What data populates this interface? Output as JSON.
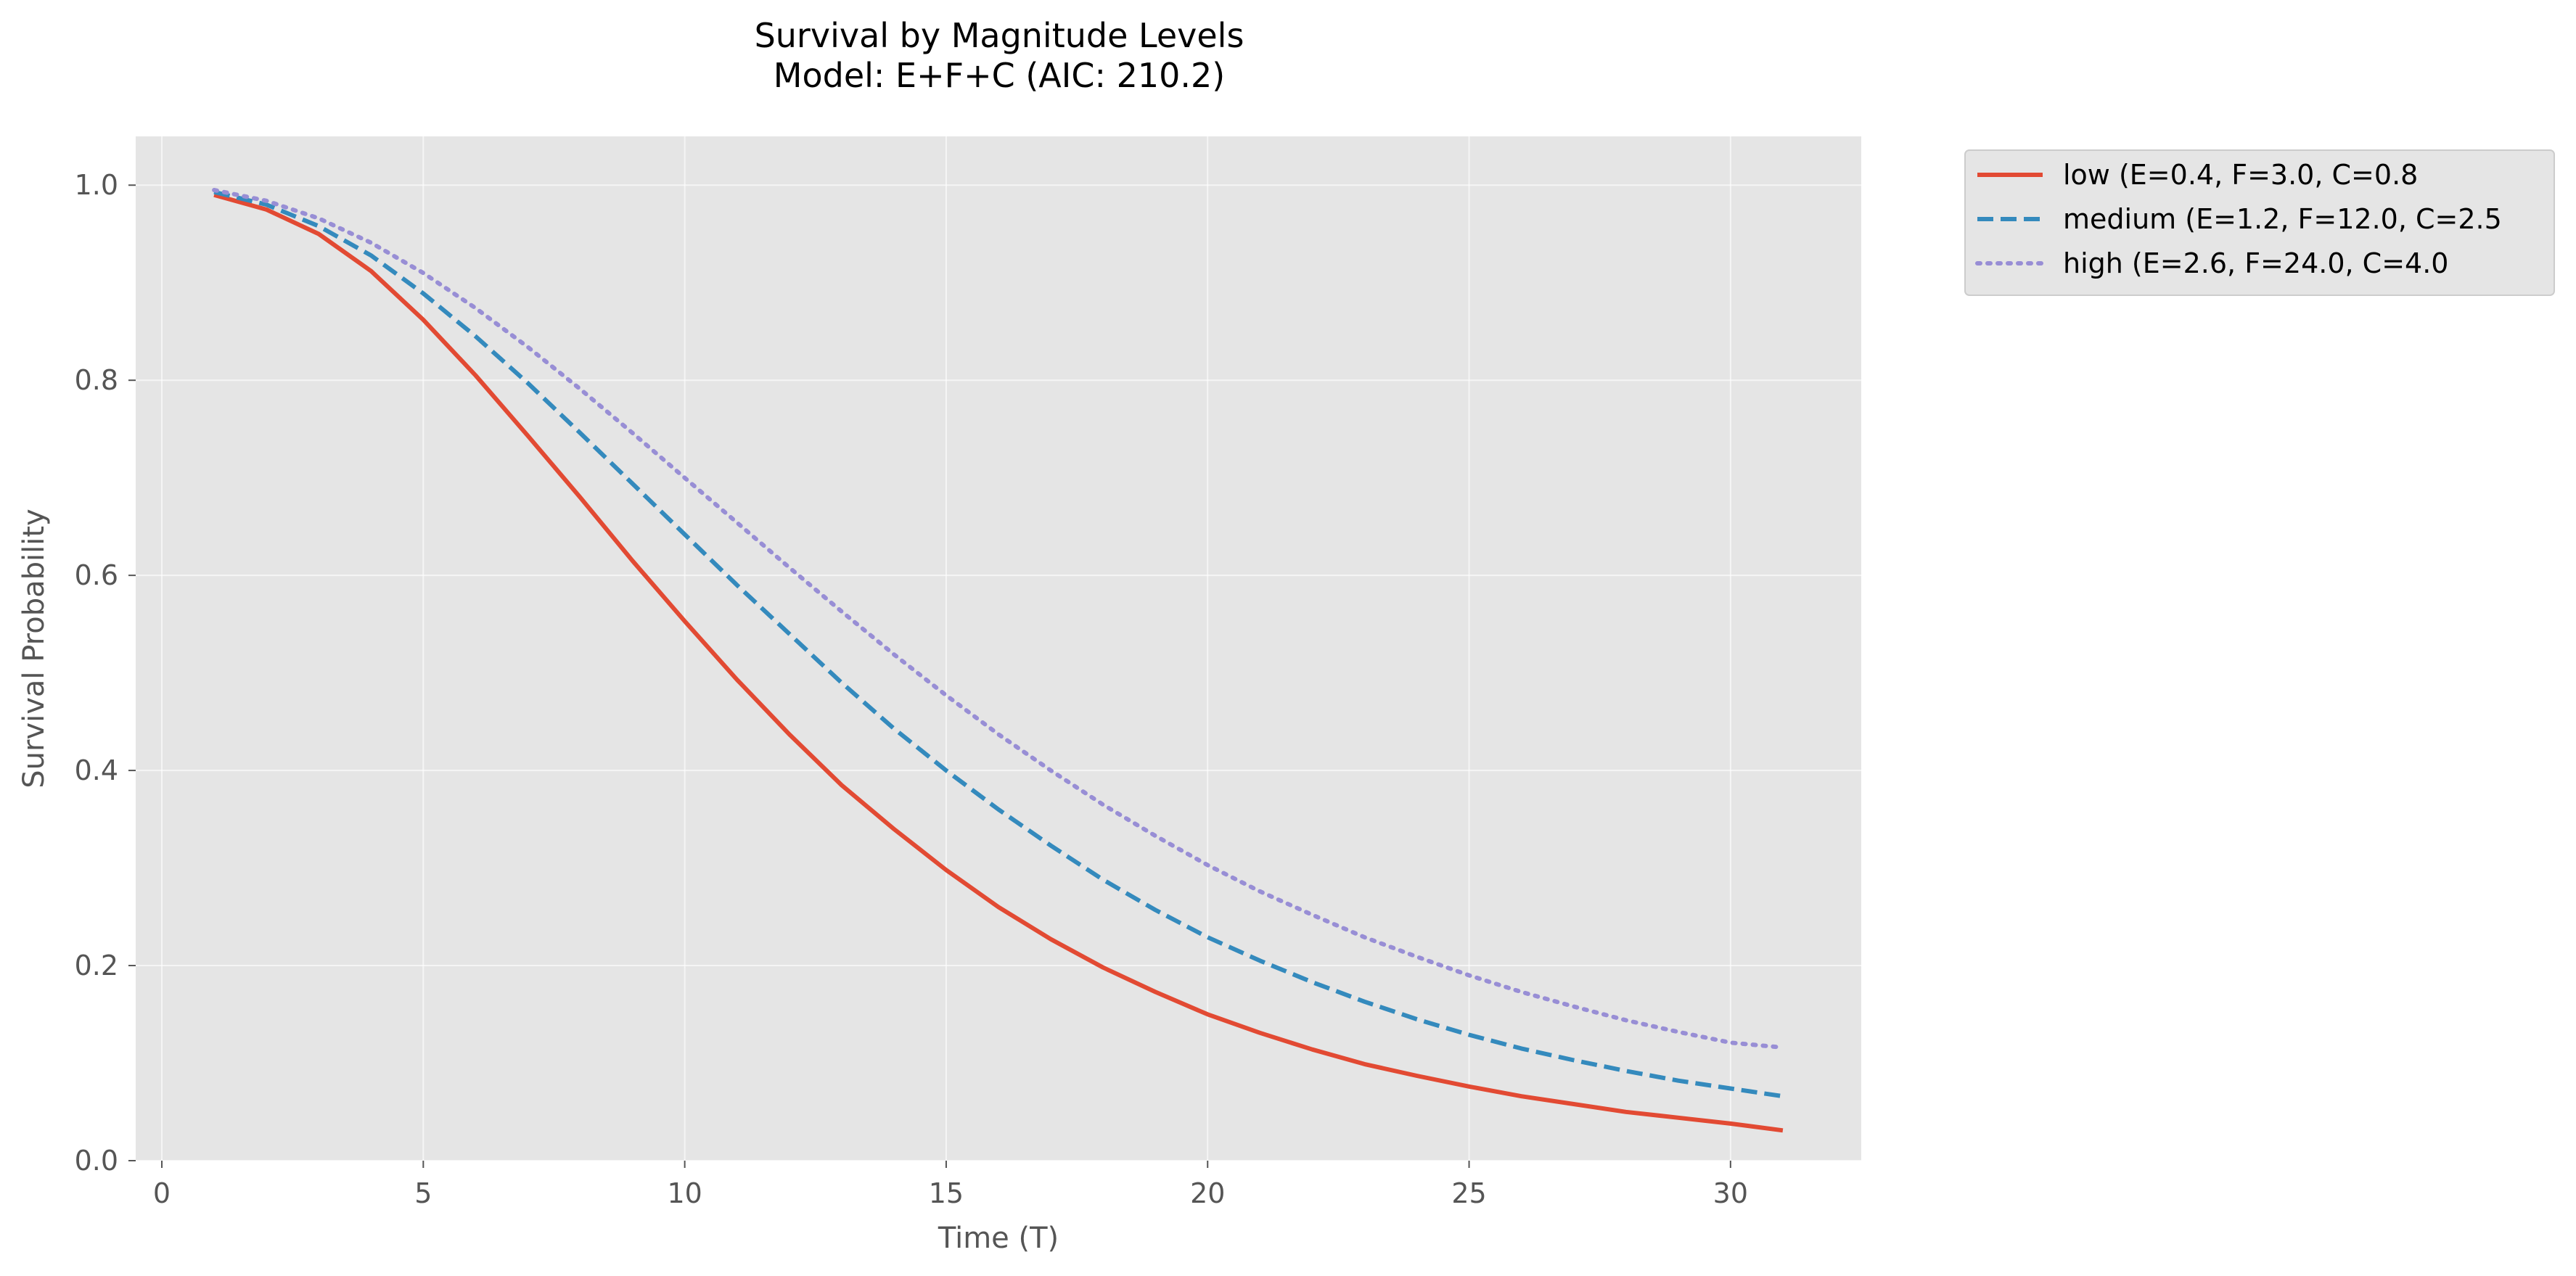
{
  "chart_data": {
    "type": "line",
    "title": "Survival by Magnitude Levels",
    "subtitle": "Model: E+F+C (AIC: 210.2)",
    "xlabel": "Time (T)",
    "ylabel": "Survival Probability",
    "xlim": [
      -0.5,
      32.5
    ],
    "ylim": [
      0.0,
      1.05
    ],
    "xticks": [
      0,
      5,
      10,
      15,
      20,
      25,
      30
    ],
    "yticks": [
      0.0,
      0.2,
      0.4,
      0.6,
      0.8,
      1.0
    ],
    "xtick_labels": [
      "0",
      "5",
      "10",
      "15",
      "20",
      "25",
      "30"
    ],
    "ytick_labels": [
      "0.0",
      "0.2",
      "0.4",
      "0.6",
      "0.8",
      "1.0"
    ],
    "grid": true,
    "legend_placement": "outside-top-right",
    "background": "#e5e5e5",
    "x": [
      1,
      2,
      3,
      4,
      5,
      6,
      7,
      8,
      9,
      10,
      11,
      12,
      13,
      14,
      15,
      16,
      17,
      18,
      19,
      20,
      21,
      22,
      23,
      24,
      25,
      26,
      27,
      28,
      29,
      30,
      31
    ],
    "series": [
      {
        "name": "low (E=0.4, F=3.0, C=0.8",
        "color": "#E24A33",
        "dash": "solid",
        "values": [
          0.99,
          0.975,
          0.95,
          0.912,
          0.862,
          0.805,
          0.743,
          0.68,
          0.615,
          0.553,
          0.493,
          0.437,
          0.385,
          0.34,
          0.298,
          0.26,
          0.227,
          0.198,
          0.173,
          0.15,
          0.131,
          0.114,
          0.099,
          0.087,
          0.076,
          0.066,
          0.058,
          0.05,
          0.044,
          0.038,
          0.031
        ]
      },
      {
        "name": "medium (E=1.2, F=12.0, C=2.5",
        "color": "#348ABD",
        "dash": "dashed",
        "values": [
          0.993,
          0.98,
          0.958,
          0.928,
          0.889,
          0.845,
          0.797,
          0.746,
          0.694,
          0.642,
          0.59,
          0.54,
          0.49,
          0.443,
          0.4,
          0.36,
          0.323,
          0.288,
          0.257,
          0.229,
          0.205,
          0.183,
          0.163,
          0.145,
          0.129,
          0.115,
          0.103,
          0.092,
          0.082,
          0.074,
          0.066
        ]
      },
      {
        "name": "high (E=2.6, F=24.0, C=4.0",
        "color": "#988ED5",
        "dash": "dotted",
        "values": [
          0.995,
          0.984,
          0.966,
          0.941,
          0.91,
          0.874,
          0.834,
          0.791,
          0.746,
          0.7,
          0.654,
          0.608,
          0.563,
          0.519,
          0.477,
          0.437,
          0.4,
          0.365,
          0.333,
          0.303,
          0.276,
          0.252,
          0.229,
          0.209,
          0.19,
          0.173,
          0.158,
          0.144,
          0.132,
          0.121,
          0.116
        ]
      }
    ]
  }
}
